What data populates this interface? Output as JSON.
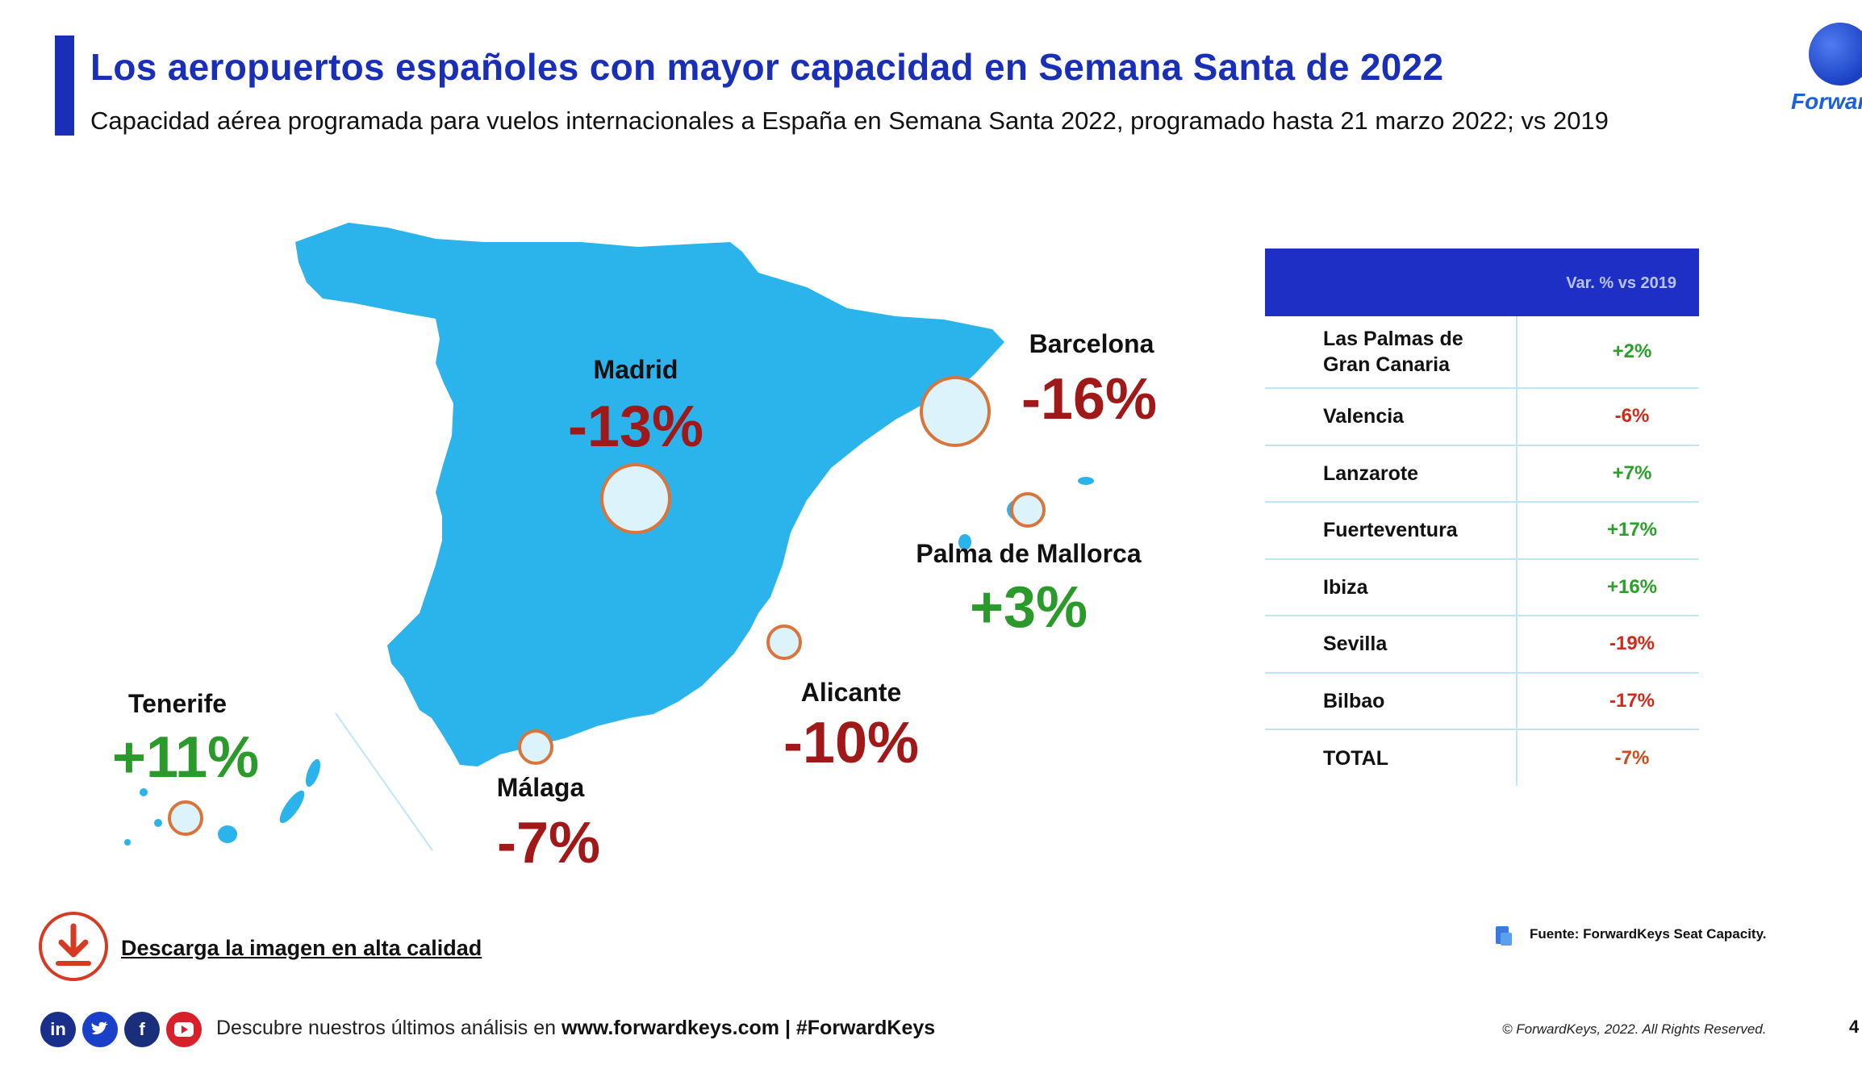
{
  "header": {
    "title": "Los aeropuertos españoles con mayor capacidad en Semana Santa de 2022",
    "subtitle": "Capacidad aérea programada para vuelos internacionales a España en Semana Santa 2022, programado hasta 21 marzo 2022; vs 2019"
  },
  "logo": {
    "text": "Forward",
    "icon": "globe-icon"
  },
  "map": {
    "cities": [
      {
        "name": "Madrid",
        "value": "-13%"
      },
      {
        "name": "Barcelona",
        "value": "-16%"
      },
      {
        "name": "Palma de Mallorca",
        "value": "+3%"
      },
      {
        "name": "Alicante",
        "value": "-10%"
      },
      {
        "name": "Málaga",
        "value": "-7%"
      },
      {
        "name": "Tenerife",
        "value": "+11%"
      }
    ],
    "colors": {
      "land": "#2bb3ec",
      "negative": "#a01818",
      "positive": "#2a9a2a",
      "marker": "#d9743a"
    }
  },
  "table": {
    "header": "Var. % vs 2019",
    "rows": [
      {
        "name": "Las Palmas de Gran Canaria",
        "value": "+2%"
      },
      {
        "name": "Valencia",
        "value": "-6%"
      },
      {
        "name": "Lanzarote",
        "value": "+7%"
      },
      {
        "name": "Fuerteventura",
        "value": "+17%"
      },
      {
        "name": "Ibiza",
        "value": "+16%"
      },
      {
        "name": "Sevilla",
        "value": "-19%"
      },
      {
        "name": "Bilbao",
        "value": "-17%"
      },
      {
        "name": "TOTAL",
        "value": "-7%"
      }
    ]
  },
  "download": {
    "label": "Descarga la imagen en alta calidad",
    "icon": "download-icon"
  },
  "source": {
    "text": "Fuente: ForwardKeys Seat Capacity."
  },
  "footer": {
    "social": [
      "in",
      "t",
      "f",
      "yt"
    ],
    "text_prefix": "Descubre nuestros últimos análisis en",
    "text_bold": "www.forwardkeys.com | #ForwardKeys",
    "copyright": "© ForwardKeys, 2022. All Rights Reserved.",
    "page": "4"
  }
}
